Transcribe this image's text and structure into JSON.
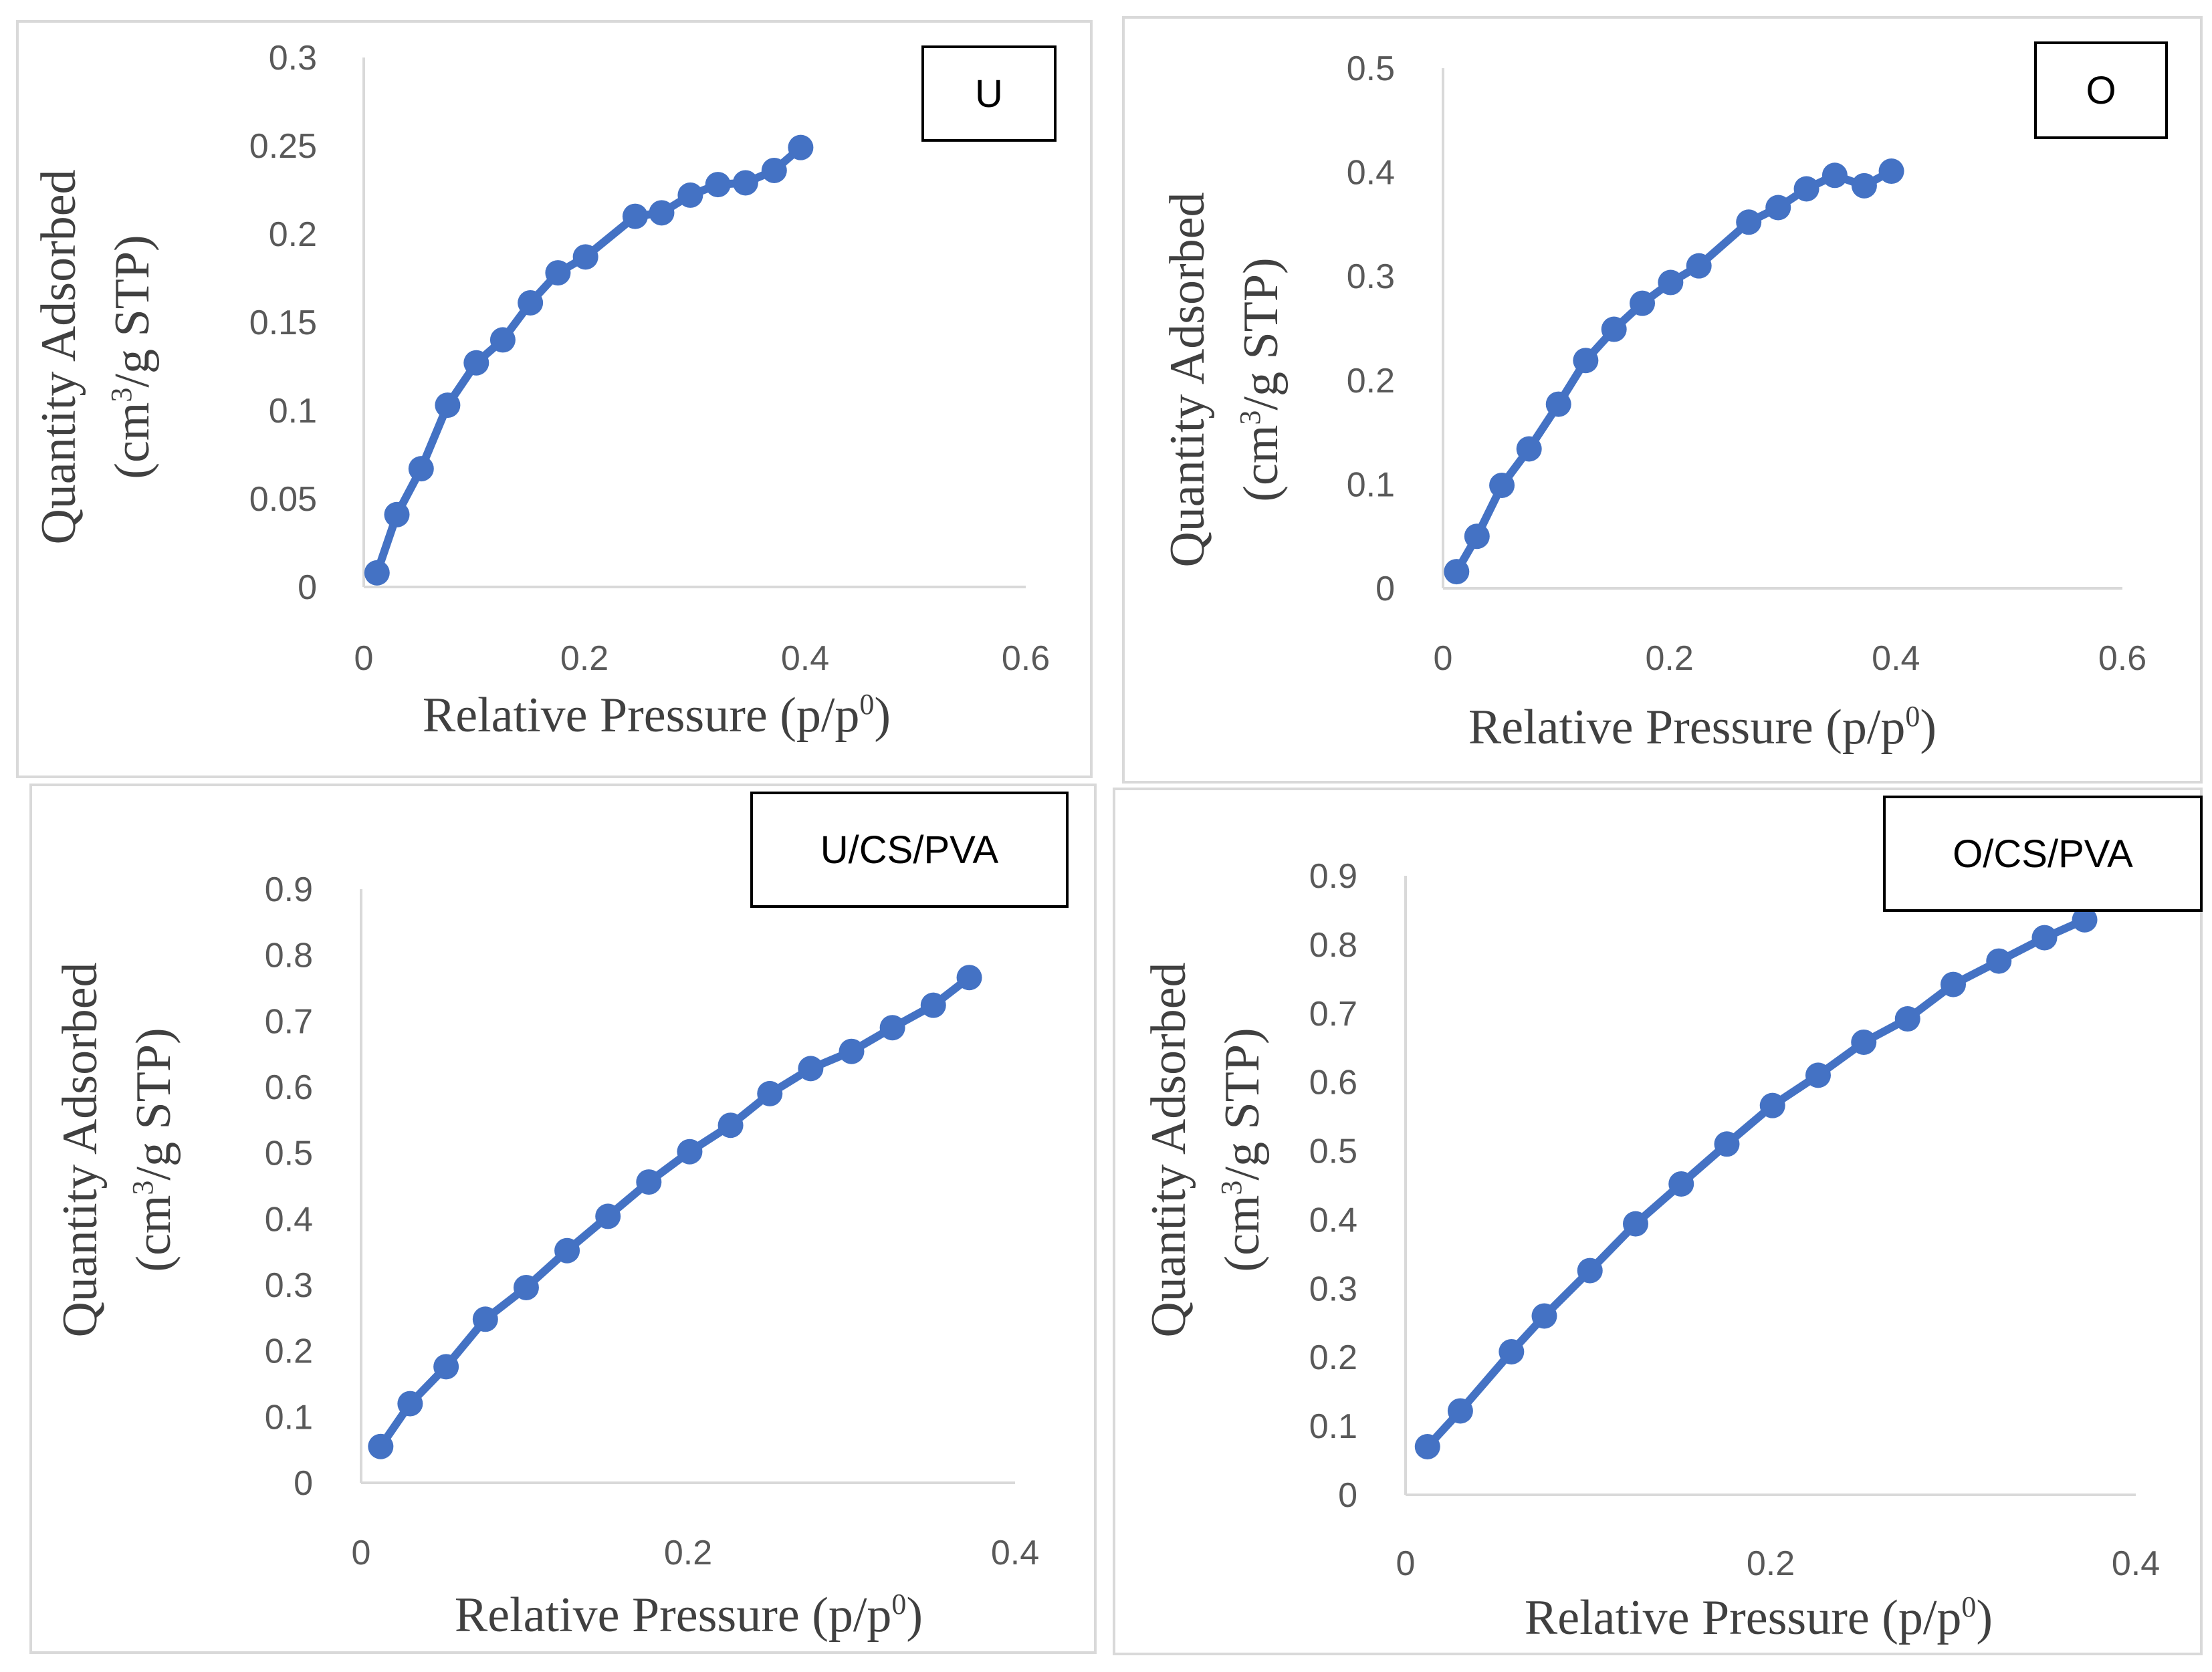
{
  "colors": {
    "series": "#4472c4",
    "axis": "#d9d9d9",
    "tick": "#595959",
    "title": "#404040",
    "frame": "#d9d9d9"
  },
  "chart_data": [
    {
      "type": "line",
      "label": "U",
      "xlabel": "Relative Pressure (p/p0)",
      "ylabel_line1": "Quantity Adsorbed",
      "ylabel_line2": "(cm3/g STP)",
      "xlim": [
        0,
        0.6
      ],
      "ylim": [
        0,
        0.3
      ],
      "xticks": [
        0,
        0.2,
        0.4,
        0.6
      ],
      "yticks": [
        0,
        0.05,
        0.1,
        0.15,
        0.2,
        0.25,
        0.3
      ],
      "grid": false,
      "x": [
        0.012,
        0.03,
        0.052,
        0.076,
        0.102,
        0.126,
        0.151,
        0.176,
        0.201,
        0.246,
        0.27,
        0.296,
        0.321,
        0.346,
        0.372,
        0.396
      ],
      "y": [
        0.008,
        0.041,
        0.067,
        0.103,
        0.127,
        0.14,
        0.161,
        0.178,
        0.187,
        0.21,
        0.212,
        0.222,
        0.228,
        0.229,
        0.236,
        0.249
      ]
    },
    {
      "type": "line",
      "label": "O",
      "xlabel": "Relative Pressure (p/p0)",
      "ylabel_line1": "Quantity Adsorbed",
      "ylabel_line2": "(cm3/g STP)",
      "xlim": [
        0,
        0.6
      ],
      "ylim": [
        0,
        0.5
      ],
      "xticks": [
        0,
        0.2,
        0.4,
        0.6
      ],
      "yticks": [
        0,
        0.1,
        0.2,
        0.3,
        0.4,
        0.5
      ],
      "grid": false,
      "x": [
        0.012,
        0.03,
        0.052,
        0.076,
        0.102,
        0.126,
        0.151,
        0.176,
        0.201,
        0.226,
        0.27,
        0.296,
        0.321,
        0.346,
        0.372,
        0.396
      ],
      "y": [
        0.016,
        0.05,
        0.099,
        0.134,
        0.177,
        0.219,
        0.249,
        0.274,
        0.294,
        0.31,
        0.352,
        0.366,
        0.384,
        0.397,
        0.387,
        0.401
      ]
    },
    {
      "type": "line",
      "label": "U/CS/PVA",
      "xlabel": "Relative Pressure (p/p0)",
      "ylabel_line1": "Quantity Adsorbed",
      "ylabel_line2": "(cm3/g STP)",
      "xlim": [
        0,
        0.4
      ],
      "ylim": [
        0,
        0.9
      ],
      "xticks": [
        0,
        0.2,
        0.4
      ],
      "yticks": [
        0,
        0.1,
        0.2,
        0.3,
        0.4,
        0.5,
        0.6,
        0.7,
        0.8,
        0.9
      ],
      "grid": false,
      "x": [
        0.012,
        0.03,
        0.052,
        0.076,
        0.101,
        0.126,
        0.151,
        0.176,
        0.201,
        0.226,
        0.25,
        0.275,
        0.3,
        0.325,
        0.35,
        0.372
      ],
      "y": [
        0.055,
        0.12,
        0.176,
        0.248,
        0.296,
        0.352,
        0.404,
        0.456,
        0.502,
        0.542,
        0.59,
        0.628,
        0.654,
        0.69,
        0.724,
        0.766
      ]
    },
    {
      "type": "line",
      "label": "O/CS/PVA",
      "xlabel": "Relative Pressure (p/p0)",
      "ylabel_line1": "Quantity Adsorbed",
      "ylabel_line2": "(cm3/g STP)",
      "xlim": [
        0,
        0.4
      ],
      "ylim": [
        0,
        0.9
      ],
      "xticks": [
        0,
        0.2,
        0.4
      ],
      "yticks": [
        0,
        0.1,
        0.2,
        0.3,
        0.4,
        0.5,
        0.6,
        0.7,
        0.8,
        0.9
      ],
      "grid": false,
      "x": [
        0.012,
        0.03,
        0.058,
        0.076,
        0.101,
        0.126,
        0.151,
        0.176,
        0.201,
        0.226,
        0.251,
        0.275,
        0.3,
        0.325,
        0.35,
        0.372
      ],
      "y": [
        0.07,
        0.122,
        0.208,
        0.26,
        0.326,
        0.394,
        0.452,
        0.51,
        0.566,
        0.61,
        0.658,
        0.692,
        0.742,
        0.776,
        0.81,
        0.836
      ]
    }
  ]
}
